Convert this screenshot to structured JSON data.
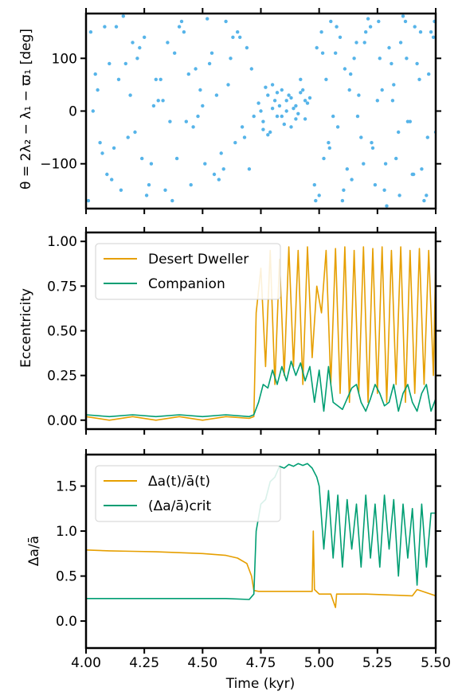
{
  "figure": {
    "xlabel": "Time (kyr)"
  },
  "chart_data": [
    {
      "type": "scatter",
      "ylabel": "θ = 2λ₂ − λ₁ − ϖ₁ [deg]",
      "xlim": [
        4.0,
        5.5
      ],
      "ylim": [
        -185,
        185
      ],
      "yticks": [
        100,
        0,
        -100
      ],
      "ytick_labels": [
        "100",
        "0",
        "−100"
      ],
      "series": [
        {
          "color": "#56B4E9",
          "x": [
            4.02,
            4.06,
            4.1,
            4.15,
            4.19,
            4.23,
            4.28,
            4.32,
            4.36,
            4.41,
            4.45,
            4.5,
            4.54,
            4.58,
            4.63,
            4.67,
            4.71,
            4.01,
            4.05,
            4.09,
            4.13,
            4.18,
            4.22,
            4.26,
            4.31,
            4.35,
            4.39,
            4.44,
            4.48,
            4.52,
            4.57,
            4.61,
            4.65,
            4.7,
            4.03,
            4.08,
            4.12,
            4.17,
            4.21,
            4.25,
            4.3,
            4.34,
            4.38,
            4.43,
            4.47,
            4.51,
            4.56,
            4.6,
            4.64,
            4.69,
            4.04,
            4.11,
            4.16,
            4.24,
            4.29,
            4.37,
            4.42,
            4.49,
            4.55,
            4.62,
            4.68,
            4.07,
            4.14,
            4.2,
            4.27,
            4.33,
            4.4,
            4.46,
            4.53,
            4.59,
            4.66,
            4.72,
            4.74,
            4.76,
            4.78,
            4.8,
            4.82,
            4.84,
            4.86,
            4.88,
            4.9,
            4.92,
            4.94,
            4.96,
            4.75,
            4.77,
            4.79,
            4.81,
            4.83,
            4.85,
            4.87,
            4.89,
            4.91,
            4.93,
            4.95,
            4.76,
            4.8,
            4.84,
            4.88,
            4.92,
            4.78,
            4.82,
            4.86,
            4.9,
            4.94,
            4.98,
            5.01,
            5.04,
            5.07,
            5.1,
            5.13,
            5.16,
            5.19,
            5.22,
            5.25,
            5.28,
            5.31,
            5.34,
            5.37,
            5.4,
            5.43,
            5.46,
            5.49,
            4.99,
            5.02,
            5.05,
            5.08,
            5.11,
            5.14,
            5.17,
            5.2,
            5.23,
            5.26,
            5.29,
            5.32,
            5.35,
            5.38,
            5.41,
            5.44,
            5.47,
            5.0,
            5.03,
            5.06,
            5.09,
            5.12,
            5.15,
            5.18,
            5.21,
            5.24,
            5.27,
            5.3,
            5.33,
            5.36,
            5.39,
            5.42,
            5.45,
            5.48,
            5.5,
            4.985,
            5.015,
            5.045,
            5.075,
            5.105,
            5.135,
            5.165,
            5.195,
            5.225,
            5.255,
            5.285,
            5.315,
            5.345,
            5.375,
            5.405,
            5.435,
            5.465,
            5.495
          ],
          "y": [
            150,
            -60,
            90,
            -150,
            30,
            120,
            -100,
            60,
            -20,
            170,
            -140,
            10,
            110,
            -80,
            140,
            -30,
            80,
            -170,
            40,
            -120,
            160,
            -50,
            100,
            -160,
            20,
            130,
            -90,
            70,
            -10,
            175,
            -130,
            50,
            150,
            -110,
            0,
            160,
            -70,
            90,
            -40,
            140,
            60,
            -150,
            110,
            -20,
            80,
            -100,
            30,
            170,
            -60,
            120,
            70,
            -130,
            180,
            -90,
            10,
            -170,
            150,
            40,
            -120,
            100,
            -50,
            -80,
            60,
            130,
            -140,
            20,
            160,
            -30,
            90,
            -110,
            140,
            -10,
            15,
            -20,
            30,
            5,
            -10,
            40,
            20,
            -30,
            10,
            35,
            -15,
            25,
            0,
            45,
            -40,
            20,
            10,
            -25,
            30,
            5,
            -5,
            40,
            15,
            -35,
            50,
            -10,
            25,
            60,
            -45,
            35,
            0,
            -15,
            20,
            -140,
            150,
            -60,
            110,
            -170,
            40,
            130,
            -100,
            160,
            20,
            -150,
            90,
            -40,
            170,
            -120,
            60,
            -160,
            140,
            120,
            -90,
            170,
            -30,
            80,
            -130,
            30,
            150,
            -70,
            100,
            -180,
            50,
            130,
            -20,
            160,
            -110,
            70,
            -160,
            60,
            -10,
            140,
            -110,
            100,
            -50,
            175,
            -140,
            40,
            120,
            -90,
            180,
            -20,
            90,
            -170,
            150,
            -40,
            -170,
            110,
            -70,
            160,
            -150,
            70,
            -10,
            130,
            -60,
            170,
            -100,
            20,
            -160,
            100,
            -120,
            150,
            -50,
            170
          ]
        }
      ]
    },
    {
      "type": "line",
      "ylabel": "Eccentricity",
      "xlim": [
        4.0,
        5.5
      ],
      "ylim": [
        -0.05,
        1.05
      ],
      "yticks": [
        0.0,
        0.25,
        0.5,
        0.75,
        1.0
      ],
      "ytick_labels": [
        "0.00",
        "0.25",
        "0.50",
        "0.75",
        "1.00"
      ],
      "legend_position": "top-left",
      "series": [
        {
          "name": "Desert Dweller",
          "color": "#E69F00",
          "x": [
            4.0,
            4.1,
            4.2,
            4.3,
            4.4,
            4.5,
            4.6,
            4.7,
            4.72,
            4.73,
            4.75,
            4.77,
            4.79,
            4.81,
            4.83,
            4.85,
            4.87,
            4.89,
            4.91,
            4.93,
            4.95,
            4.97,
            4.99,
            5.01,
            5.03,
            5.05,
            5.07,
            5.09,
            5.11,
            5.13,
            5.15,
            5.17,
            5.19,
            5.21,
            5.23,
            5.25,
            5.27,
            5.29,
            5.31,
            5.33,
            5.35,
            5.37,
            5.39,
            5.41,
            5.43,
            5.45,
            5.47,
            5.49,
            5.5
          ],
          "values": [
            0.02,
            0.0,
            0.02,
            0.0,
            0.02,
            0.0,
            0.02,
            0.01,
            0.02,
            0.6,
            0.85,
            0.3,
            0.95,
            0.2,
            0.9,
            0.25,
            0.97,
            0.3,
            0.95,
            0.2,
            0.97,
            0.35,
            0.75,
            0.6,
            0.95,
            0.2,
            0.96,
            0.15,
            0.97,
            0.1,
            0.95,
            0.15,
            0.97,
            0.1,
            0.96,
            0.15,
            0.97,
            0.1,
            0.95,
            0.2,
            0.97,
            0.1,
            0.95,
            0.15,
            0.96,
            0.2,
            0.95,
            0.25,
            0.9
          ]
        },
        {
          "name": "Companion",
          "color": "#009E73",
          "x": [
            4.0,
            4.1,
            4.2,
            4.3,
            4.4,
            4.5,
            4.6,
            4.7,
            4.72,
            4.74,
            4.76,
            4.78,
            4.8,
            4.82,
            4.84,
            4.86,
            4.88,
            4.9,
            4.92,
            4.94,
            4.96,
            4.98,
            5.0,
            5.02,
            5.04,
            5.06,
            5.08,
            5.1,
            5.12,
            5.14,
            5.16,
            5.18,
            5.2,
            5.22,
            5.24,
            5.26,
            5.28,
            5.3,
            5.32,
            5.34,
            5.36,
            5.38,
            5.4,
            5.42,
            5.44,
            5.46,
            5.48,
            5.5
          ],
          "values": [
            0.03,
            0.02,
            0.03,
            0.02,
            0.03,
            0.02,
            0.03,
            0.02,
            0.03,
            0.1,
            0.2,
            0.18,
            0.28,
            0.2,
            0.3,
            0.22,
            0.33,
            0.25,
            0.32,
            0.22,
            0.3,
            0.1,
            0.28,
            0.05,
            0.3,
            0.1,
            0.08,
            0.06,
            0.12,
            0.18,
            0.2,
            0.1,
            0.05,
            0.12,
            0.2,
            0.15,
            0.08,
            0.1,
            0.2,
            0.05,
            0.15,
            0.2,
            0.1,
            0.05,
            0.15,
            0.2,
            0.05,
            0.12
          ]
        }
      ]
    },
    {
      "type": "line",
      "ylabel": "Δa/ā",
      "xlabel": "Time (kyr)",
      "xlim": [
        4.0,
        5.5
      ],
      "ylim": [
        -0.3,
        1.85
      ],
      "yticks": [
        0.0,
        0.5,
        1.0,
        1.5
      ],
      "ytick_labels": [
        "0.0",
        "0.5",
        "1.0",
        "1.5"
      ],
      "xticks": [
        4.0,
        4.25,
        4.5,
        4.75,
        5.0,
        5.25,
        5.5
      ],
      "xtick_labels": [
        "4.00",
        "4.25",
        "4.50",
        "4.75",
        "5.00",
        "5.25",
        "5.50"
      ],
      "legend_position": "top-left",
      "series": [
        {
          "name": "Δa(t)/ā(t)",
          "color": "#E69F00",
          "x": [
            4.0,
            4.1,
            4.2,
            4.3,
            4.4,
            4.5,
            4.6,
            4.65,
            4.69,
            4.71,
            4.72,
            4.74,
            4.8,
            4.9,
            4.96,
            4.97,
            4.975,
            4.98,
            5.0,
            5.05,
            5.07,
            5.075,
            5.1,
            5.2,
            5.3,
            5.4,
            5.42,
            5.5
          ],
          "values": [
            0.79,
            0.78,
            0.775,
            0.77,
            0.76,
            0.75,
            0.73,
            0.7,
            0.64,
            0.5,
            0.34,
            0.33,
            0.33,
            0.33,
            0.33,
            0.33,
            1.0,
            0.35,
            0.3,
            0.3,
            0.15,
            0.3,
            0.3,
            0.3,
            0.29,
            0.28,
            0.35,
            0.28
          ]
        },
        {
          "name": "(Δa/ā)crit",
          "color": "#009E73",
          "x": [
            4.0,
            4.1,
            4.2,
            4.3,
            4.4,
            4.5,
            4.6,
            4.7,
            4.72,
            4.73,
            4.75,
            4.77,
            4.79,
            4.81,
            4.83,
            4.85,
            4.87,
            4.89,
            4.91,
            4.93,
            4.95,
            4.97,
            4.99,
            5.0,
            5.02,
            5.04,
            5.06,
            5.08,
            5.1,
            5.12,
            5.14,
            5.16,
            5.18,
            5.2,
            5.22,
            5.24,
            5.26,
            5.28,
            5.3,
            5.32,
            5.34,
            5.36,
            5.38,
            5.4,
            5.42,
            5.44,
            5.46,
            5.48,
            5.5
          ],
          "values": [
            0.25,
            0.25,
            0.25,
            0.25,
            0.25,
            0.25,
            0.25,
            0.24,
            0.3,
            1.0,
            1.3,
            1.35,
            1.55,
            1.6,
            1.72,
            1.7,
            1.74,
            1.72,
            1.75,
            1.73,
            1.75,
            1.7,
            1.6,
            1.5,
            0.8,
            1.45,
            0.7,
            1.4,
            0.6,
            1.35,
            0.8,
            1.3,
            0.6,
            1.4,
            0.7,
            1.3,
            0.6,
            1.4,
            0.8,
            1.35,
            0.5,
            1.3,
            0.7,
            1.25,
            0.4,
            1.3,
            0.6,
            1.2,
            1.2
          ]
        }
      ]
    }
  ]
}
